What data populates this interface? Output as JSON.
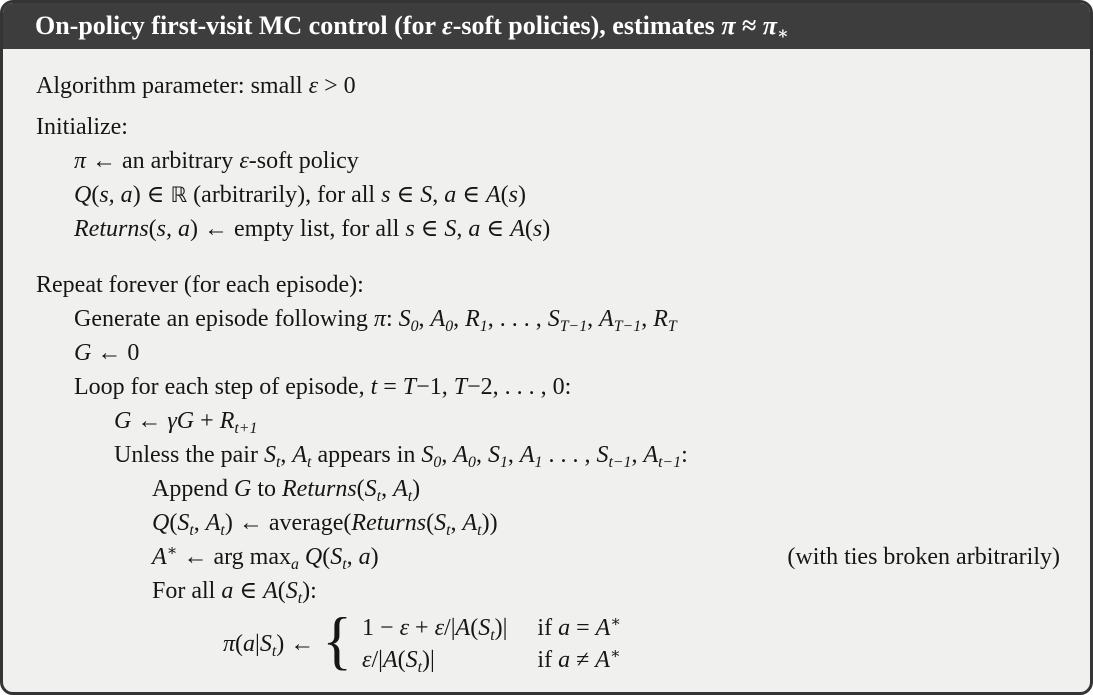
{
  "colors": {
    "title_bg": "#3d3d3d",
    "title_fg": "#ffffff",
    "body_bg": "#f0f0ef",
    "border": "#343434",
    "text": "#161616"
  },
  "title": {
    "segs": [
      [
        "r",
        "On-policy first-visit MC control (for "
      ],
      [
        "i",
        "ε"
      ],
      [
        "r",
        "-soft policies), estimates "
      ],
      [
        "i",
        "π"
      ],
      [
        "r",
        " ≈ "
      ],
      [
        "i",
        "π"
      ],
      [
        "sub",
        "∗"
      ]
    ]
  },
  "lines": [
    {
      "indent": 0,
      "gap": "none",
      "segs": [
        [
          "r",
          "Algorithm parameter: small "
        ],
        [
          "i",
          "ε"
        ],
        [
          "r",
          " > 0"
        ]
      ]
    },
    {
      "indent": 0,
      "gap": "small",
      "segs": [
        [
          "r",
          "Initialize:"
        ]
      ]
    },
    {
      "indent": 1,
      "gap": "none",
      "segs": [
        [
          "i",
          "π"
        ],
        [
          "r",
          " ← an arbitrary "
        ],
        [
          "i",
          "ε"
        ],
        [
          "r",
          "-soft policy"
        ]
      ]
    },
    {
      "indent": 1,
      "gap": "none",
      "segs": [
        [
          "i",
          "Q"
        ],
        [
          "r",
          "("
        ],
        [
          "i",
          "s, a"
        ],
        [
          "r",
          ") ∈ "
        ],
        [
          "bb",
          "ℝ"
        ],
        [
          "r",
          " (arbitrarily), for all "
        ],
        [
          "i",
          "s"
        ],
        [
          "r",
          " ∈ "
        ],
        [
          "c",
          "S"
        ],
        [
          "r",
          ", "
        ],
        [
          "i",
          "a"
        ],
        [
          "r",
          " ∈ "
        ],
        [
          "c",
          "A"
        ],
        [
          "r",
          "("
        ],
        [
          "i",
          "s"
        ],
        [
          "r",
          ")"
        ]
      ]
    },
    {
      "indent": 1,
      "gap": "none",
      "segs": [
        [
          "i",
          "Returns"
        ],
        [
          "r",
          "("
        ],
        [
          "i",
          "s, a"
        ],
        [
          "r",
          ") ← empty list, for all "
        ],
        [
          "i",
          "s"
        ],
        [
          "r",
          " ∈ "
        ],
        [
          "c",
          "S"
        ],
        [
          "r",
          ", "
        ],
        [
          "i",
          "a"
        ],
        [
          "r",
          " ∈ "
        ],
        [
          "c",
          "A"
        ],
        [
          "r",
          "("
        ],
        [
          "i",
          "s"
        ],
        [
          "r",
          ")"
        ]
      ]
    },
    {
      "indent": 0,
      "gap": "large",
      "segs": [
        [
          "r",
          "Repeat forever (for each episode):"
        ]
      ]
    },
    {
      "indent": 1,
      "gap": "none",
      "segs": [
        [
          "r",
          "Generate an episode following "
        ],
        [
          "i",
          "π"
        ],
        [
          "r",
          ": "
        ],
        [
          "i",
          "S"
        ],
        [
          "sub",
          "0"
        ],
        [
          "r",
          ", "
        ],
        [
          "i",
          "A"
        ],
        [
          "sub",
          "0"
        ],
        [
          "r",
          ", "
        ],
        [
          "i",
          "R"
        ],
        [
          "sub",
          "1"
        ],
        [
          "r",
          ", . . . , "
        ],
        [
          "i",
          "S"
        ],
        [
          "sub",
          "T−1"
        ],
        [
          "r",
          ", "
        ],
        [
          "i",
          "A"
        ],
        [
          "sub",
          "T−1"
        ],
        [
          "r",
          ", "
        ],
        [
          "i",
          "R"
        ],
        [
          "sub",
          "T"
        ]
      ]
    },
    {
      "indent": 1,
      "gap": "none",
      "segs": [
        [
          "i",
          "G"
        ],
        [
          "r",
          " ← 0"
        ]
      ]
    },
    {
      "indent": 1,
      "gap": "none",
      "segs": [
        [
          "r",
          "Loop for each step of episode, "
        ],
        [
          "i",
          "t"
        ],
        [
          "r",
          " = "
        ],
        [
          "i",
          "T"
        ],
        [
          "r",
          "−1, "
        ],
        [
          "i",
          "T"
        ],
        [
          "r",
          "−2, . . . , 0:"
        ]
      ]
    },
    {
      "indent": 2,
      "gap": "none",
      "segs": [
        [
          "i",
          "G"
        ],
        [
          "r",
          " ← "
        ],
        [
          "i",
          "γG"
        ],
        [
          "r",
          " + "
        ],
        [
          "i",
          "R"
        ],
        [
          "sub",
          "t+1"
        ]
      ]
    },
    {
      "indent": 2,
      "gap": "none",
      "segs": [
        [
          "r",
          "Unless the pair "
        ],
        [
          "i",
          "S"
        ],
        [
          "sub",
          "t"
        ],
        [
          "r",
          ", "
        ],
        [
          "i",
          "A"
        ],
        [
          "sub",
          "t"
        ],
        [
          "r",
          " appears in "
        ],
        [
          "i",
          "S"
        ],
        [
          "sub",
          "0"
        ],
        [
          "r",
          ", "
        ],
        [
          "i",
          "A"
        ],
        [
          "sub",
          "0"
        ],
        [
          "r",
          ", "
        ],
        [
          "i",
          "S"
        ],
        [
          "sub",
          "1"
        ],
        [
          "r",
          ", "
        ],
        [
          "i",
          "A"
        ],
        [
          "sub",
          "1"
        ],
        [
          "r",
          " . . . , "
        ],
        [
          "i",
          "S"
        ],
        [
          "sub",
          "t−1"
        ],
        [
          "r",
          ", "
        ],
        [
          "i",
          "A"
        ],
        [
          "sub",
          "t−1"
        ],
        [
          "r",
          ":"
        ]
      ]
    },
    {
      "indent": 3,
      "gap": "none",
      "segs": [
        [
          "r",
          "Append "
        ],
        [
          "i",
          "G"
        ],
        [
          "r",
          " to "
        ],
        [
          "i",
          "Returns"
        ],
        [
          "r",
          "("
        ],
        [
          "i",
          "S"
        ],
        [
          "sub",
          "t"
        ],
        [
          "r",
          ", "
        ],
        [
          "i",
          "A"
        ],
        [
          "sub",
          "t"
        ],
        [
          "r",
          ")"
        ]
      ]
    },
    {
      "indent": 3,
      "gap": "none",
      "segs": [
        [
          "i",
          "Q"
        ],
        [
          "r",
          "("
        ],
        [
          "i",
          "S"
        ],
        [
          "sub",
          "t"
        ],
        [
          "r",
          ", "
        ],
        [
          "i",
          "A"
        ],
        [
          "sub",
          "t"
        ],
        [
          "r",
          ") ← average("
        ],
        [
          "i",
          "Returns"
        ],
        [
          "r",
          "("
        ],
        [
          "i",
          "S"
        ],
        [
          "sub",
          "t"
        ],
        [
          "r",
          ", "
        ],
        [
          "i",
          "A"
        ],
        [
          "sub",
          "t"
        ],
        [
          "r",
          "))"
        ]
      ]
    },
    {
      "indent": 3,
      "gap": "none",
      "segs": [
        [
          "i",
          "A"
        ],
        [
          "sup",
          "∗"
        ],
        [
          "r",
          " ← arg max"
        ],
        [
          "sub",
          "a"
        ],
        [
          "r",
          " "
        ],
        [
          "i",
          "Q"
        ],
        [
          "r",
          "("
        ],
        [
          "i",
          "S"
        ],
        [
          "sub",
          "t"
        ],
        [
          "r",
          ", "
        ],
        [
          "i",
          "a"
        ],
        [
          "r",
          ")"
        ]
      ],
      "right": "(with ties broken arbitrarily)"
    },
    {
      "indent": 3,
      "gap": "none",
      "segs": [
        [
          "r",
          "For all "
        ],
        [
          "i",
          "a"
        ],
        [
          "r",
          " ∈ "
        ],
        [
          "c",
          "A"
        ],
        [
          "r",
          "("
        ],
        [
          "i",
          "S"
        ],
        [
          "sub",
          "t"
        ],
        [
          "r",
          "):"
        ]
      ]
    }
  ],
  "equation": {
    "lhs": [
      [
        "i",
        "π"
      ],
      [
        "r",
        "("
      ],
      [
        "i",
        "a"
      ],
      [
        "r",
        "|"
      ],
      [
        "i",
        "S"
      ],
      [
        "sub",
        "t"
      ],
      [
        "r",
        ") ← "
      ]
    ],
    "brace": "{",
    "rows": [
      {
        "expr": [
          [
            "r",
            "1 − "
          ],
          [
            "i",
            "ε"
          ],
          [
            "r",
            " + "
          ],
          [
            "i",
            "ε"
          ],
          [
            "r",
            "/|"
          ],
          [
            "c",
            "A"
          ],
          [
            "r",
            "("
          ],
          [
            "i",
            "S"
          ],
          [
            "sub",
            "t"
          ],
          [
            "r",
            ")|"
          ]
        ],
        "cond": [
          [
            "r",
            "if "
          ],
          [
            "i",
            "a"
          ],
          [
            "r",
            " = "
          ],
          [
            "i",
            "A"
          ],
          [
            "sup",
            "∗"
          ]
        ]
      },
      {
        "expr": [
          [
            "i",
            "ε"
          ],
          [
            "r",
            "/|"
          ],
          [
            "c",
            "A"
          ],
          [
            "r",
            "("
          ],
          [
            "i",
            "S"
          ],
          [
            "sub",
            "t"
          ],
          [
            "r",
            ")|"
          ]
        ],
        "cond": [
          [
            "r",
            "if "
          ],
          [
            "i",
            "a"
          ],
          [
            "r",
            " ≠ "
          ],
          [
            "i",
            "A"
          ],
          [
            "sup",
            "∗"
          ]
        ]
      }
    ]
  }
}
